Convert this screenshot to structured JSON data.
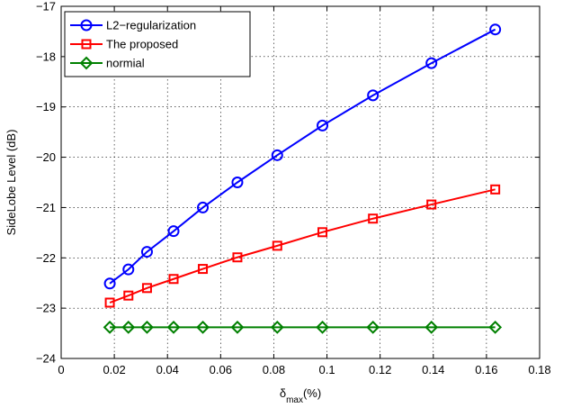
{
  "chart_data": {
    "type": "line",
    "xlabel": {
      "main": "δ",
      "sub": "max",
      "suffix": "(%)"
    },
    "ylabel": "SideLobe Level (dB)",
    "xlim": [
      0,
      0.18
    ],
    "ylim": [
      -24,
      -17
    ],
    "xticks": [
      0,
      0.02,
      0.04,
      0.06,
      0.08,
      0.1,
      0.12,
      0.14,
      0.16,
      0.18
    ],
    "xtick_labels": [
      "0",
      "0.02",
      "0.04",
      "0.06",
      "0.08",
      "0.1",
      "0.12",
      "0.14",
      "0.16",
      "0.18"
    ],
    "yticks": [
      -24,
      -23,
      -22,
      -21,
      -20,
      -19,
      -18,
      -17
    ],
    "ytick_labels": [
      "−24",
      "−23",
      "−22",
      "−21",
      "−20",
      "−19",
      "−18",
      "−17"
    ],
    "grid": true,
    "legend_position": "top-left",
    "x": [
      0.0183,
      0.0253,
      0.0323,
      0.0423,
      0.0533,
      0.0663,
      0.0813,
      0.0983,
      0.1173,
      0.1393,
      0.1633
    ],
    "series": [
      {
        "name": "L2−regularization",
        "color": "#0000ff",
        "marker": "circle",
        "values": [
          -22.51,
          -22.23,
          -21.88,
          -21.47,
          -21.0,
          -20.5,
          -19.96,
          -19.37,
          -18.77,
          -18.13,
          -17.46
        ]
      },
      {
        "name": "The proposed",
        "color": "#ff0000",
        "marker": "square",
        "values": [
          -22.89,
          -22.75,
          -22.6,
          -22.42,
          -22.22,
          -21.99,
          -21.76,
          -21.49,
          -21.22,
          -20.94,
          -20.64
        ]
      },
      {
        "name": "normial",
        "color": "#008000",
        "marker": "diamond",
        "values": [
          -23.38,
          -23.38,
          -23.38,
          -23.38,
          -23.38,
          -23.38,
          -23.38,
          -23.38,
          -23.38,
          -23.38,
          -23.38
        ]
      }
    ]
  }
}
